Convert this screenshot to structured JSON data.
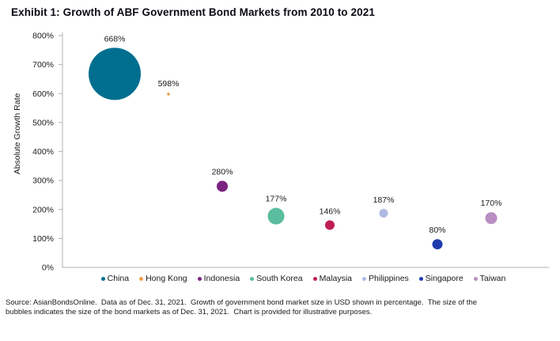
{
  "title": "Exhibit 1: Growth of ABF Government Bond Markets from 2010 to 2021",
  "chart_data": {
    "type": "scatter",
    "subtype": "bubble",
    "title": "Exhibit 1: Growth of ABF Government Bond Markets from 2010 to 2021",
    "xlabel": "",
    "ylabel": "Absolute Growth Rate",
    "ylim": [
      0,
      800
    ],
    "ytick_step": 100,
    "ytick_labels": [
      "0%",
      "100%",
      "200%",
      "300%",
      "400%",
      "500%",
      "600%",
      "700%",
      "800%"
    ],
    "grid": false,
    "legend_position": "bottom",
    "bubble_size_meaning": "size of the bond markets as of Dec. 31, 2021",
    "points": [
      {
        "name": "China",
        "value": 668,
        "data_label": "668%",
        "color": "#006F8F",
        "radius_px": 33
      },
      {
        "name": "Hong Kong",
        "value": 598,
        "data_label": "598%",
        "color": "#EEA04A",
        "radius_px": 1.8
      },
      {
        "name": "Indonesia",
        "value": 280,
        "data_label": "280%",
        "color": "#7B2382",
        "radius_px": 7
      },
      {
        "name": "South Korea",
        "value": 177,
        "data_label": "177%",
        "color": "#5ABD9D",
        "radius_px": 10.5
      },
      {
        "name": "Malaysia",
        "value": 146,
        "data_label": "146%",
        "color": "#BF1E54",
        "radius_px": 6
      },
      {
        "name": "Philippines",
        "value": 187,
        "data_label": "187%",
        "color": "#AFBAE2",
        "radius_px": 5.5
      },
      {
        "name": "Singapore",
        "value": 80,
        "data_label": "80%",
        "color": "#1F3BAD",
        "radius_px": 6.5
      },
      {
        "name": "Taiwan",
        "value": 170,
        "data_label": "170%",
        "color": "#B88EC3",
        "radius_px": 7.5
      }
    ],
    "axis_color": "#ADB3B8"
  },
  "source": {
    "line1": "Source: AsianBondsOnline.  Data as of Dec. 31, 2021.  Growth of government bond market size in USD shown in percentage.  The size of the",
    "line2": "bubbles indicates the size of the bond markets as of Dec. 31, 2021.  Chart is provided for illustrative purposes."
  }
}
